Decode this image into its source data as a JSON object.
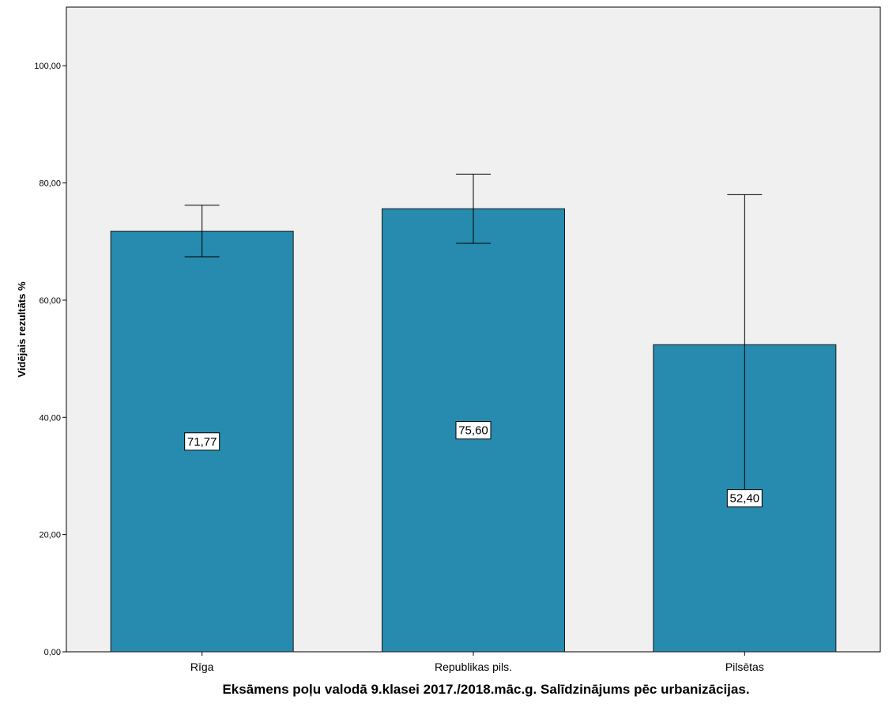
{
  "chart_data": {
    "type": "bar",
    "categories": [
      "Rīga",
      "Republikas pils.",
      "Pilsētas"
    ],
    "values": [
      71.77,
      75.6,
      52.4
    ],
    "value_labels": [
      "71,77",
      "75,60",
      "52,40"
    ],
    "error_bars": [
      {
        "low": 67.4,
        "high": 76.2
      },
      {
        "low": 69.7,
        "high": 81.5
      },
      {
        "low": 26.8,
        "high": 78.0
      }
    ],
    "title": "",
    "xlabel": "Eksāmens poļu valodā 9.klasei 2017./2018.māc.g. Salīdzinājums pēc urbanizācijas.",
    "ylabel": "Vidējais rezultāts %",
    "ylim": [
      0,
      110
    ],
    "yticks": [
      0,
      20,
      40,
      60,
      80,
      100
    ],
    "ytick_labels": [
      "0,00",
      "20,00",
      "40,00",
      "60,00",
      "80,00",
      "100,00"
    ],
    "grid": false,
    "legend": "none",
    "colors": {
      "bar_fill": "#268BAE",
      "bar_stroke": "#1a1a1a",
      "plot_background": "#F0F0F0",
      "error_bar": "#000000"
    }
  }
}
